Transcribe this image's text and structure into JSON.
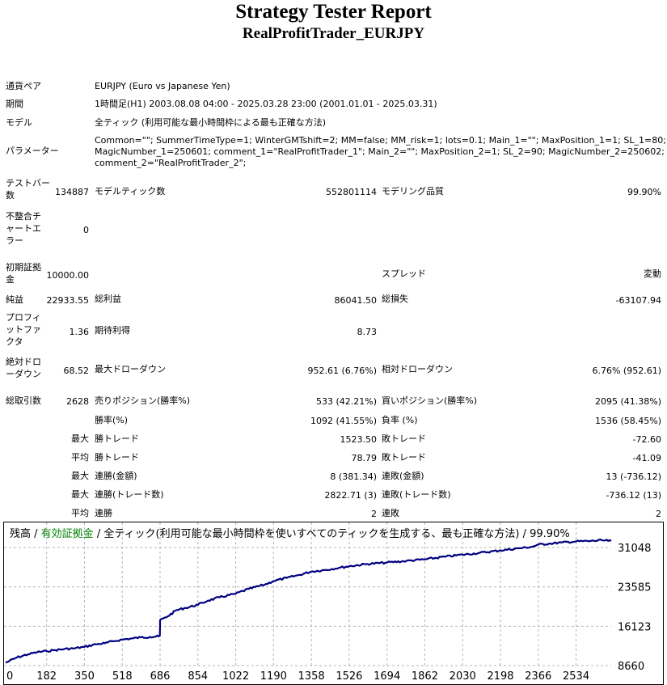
{
  "report": {
    "title": "Strategy Tester Report",
    "subtitle": "RealProfitTrader_EURJPY"
  },
  "info": {
    "pair_label": "通貨ペア",
    "pair_value": "EURJPY (Euro vs Japanese Yen)",
    "period_label": "期間",
    "period_value": "1時間足(H1) 2003.08.08 04:00 - 2025.03.28 23:00 (2001.01.01 - 2025.03.31)",
    "model_label": "モデル",
    "model_value": "全ティック (利用可能な最小時間枠による最も正確な方法)",
    "params_label": "パラメーター",
    "params_line1": "Common=\"\"; SummerTimeType=1; WinterGMTshift=2; MM=false; MM_risk=1; lots=0.1; Main_1=\"\"; MaxPosition_1=1; SL_1=80;",
    "params_line2": "MagicNumber_1=250601; comment_1=\"RealProfitTrader_1\"; Main_2=\"\"; MaxPosition_2=1; SL_2=90; MagicNumber_2=250602;",
    "params_line3": "comment_2=\"RealProfitTrader_2\";"
  },
  "stats": {
    "bars_label": "テストバー数",
    "bars_value": "134887",
    "ticks_label": "モデルティック数",
    "ticks_value": "552801114",
    "quality_label": "モデリング品質",
    "quality_value": "99.90%",
    "mismatch_label": "不整合チャートエラー",
    "mismatch_value": "0",
    "deposit_label": "初期証拠金",
    "deposit_value": "10000.00",
    "spread_label": "スプレッド",
    "spread_value": "変動",
    "net_label": "純益",
    "net_value": "22933.55",
    "gross_profit_label": "総利益",
    "gross_profit_value": "86041.50",
    "gross_loss_label": "総損失",
    "gross_loss_value": "-63107.94",
    "pf_label": "プロフィットファクタ",
    "pf_value": "1.36",
    "expected_label": "期待利得",
    "expected_value": "8.73",
    "abs_dd_label": "絶対ドローダウン",
    "abs_dd_value": "68.52",
    "max_dd_label": "最大ドローダウン",
    "max_dd_value": "952.61 (6.76%)",
    "rel_dd_label": "相対ドローダウン",
    "rel_dd_value": "6.76% (952.61)",
    "trades_label": "総取引数",
    "trades_value": "2628",
    "short_label": "売りポジション(勝率%)",
    "short_value": "533 (42.21%)",
    "long_label": "買いポジション(勝率%)",
    "long_value": "2095 (41.38%)",
    "winrate_label": "勝率(%)",
    "winrate_value": "1092 (41.55%)",
    "lossrate_label": "負率 (%)",
    "lossrate_value": "1536 (58.45%)",
    "max_label": "最大",
    "avg_label": "平均",
    "largest_win_label": "勝トレード",
    "largest_win_value": "1523.50",
    "largest_loss_label": "敗トレード",
    "largest_loss_value": "-72.60",
    "avg_win_label": "勝トレード",
    "avg_win_value": "78.79",
    "avg_loss_label": "敗トレード",
    "avg_loss_value": "-41.09",
    "max_consec_wins_money_label": "連勝(金額)",
    "max_consec_wins_money_value": "8 (381.34)",
    "max_consec_losses_money_label": "連敗(金額)",
    "max_consec_losses_money_value": "13 (-736.12)",
    "max_consec_wins_trades_label": "連勝(トレード数)",
    "max_consec_wins_trades_value": "2822.71 (3)",
    "max_consec_losses_trades_label": "連敗(トレード数)",
    "max_consec_losses_trades_value": "-736.12 (13)",
    "avg_consec_wins_label": "連勝",
    "avg_consec_wins_value": "2",
    "avg_consec_losses_label": "連敗",
    "avg_consec_losses_value": "2"
  },
  "chart_data": {
    "type": "line",
    "legend_prefix": "残高",
    "legend_sep1": " / ",
    "legend_equity": "有効証拠金",
    "legend_rest": " / 全ティック(利用可能な最小時間枠を使いすべてのティックを生成する、最も正確な方法) / 99.90%",
    "x_ticks": [
      "0",
      "182",
      "350",
      "518",
      "686",
      "854",
      "1022",
      "1190",
      "1358",
      "1526",
      "1694",
      "1862",
      "2030",
      "2198",
      "2366",
      "2534"
    ],
    "y_ticks": [
      "31048",
      "23585",
      "16123",
      "8660"
    ],
    "xlim": [
      0,
      2690
    ],
    "ylim": [
      8660,
      33200
    ],
    "grid": true,
    "line_color": "#000080",
    "series": [
      {
        "x": [
          0,
          50,
          100,
          140,
          182,
          220,
          260,
          300,
          350,
          400,
          440,
          480,
          518,
          560,
          600,
          640,
          680,
          685,
          686,
          700,
          720,
          760,
          800,
          854,
          900,
          950,
          1022,
          1080,
          1150,
          1190,
          1250,
          1300,
          1358,
          1420,
          1480,
          1526,
          1600,
          1694,
          1780,
          1862,
          1950,
          2030,
          2100,
          2198,
          2280,
          2340,
          2366,
          2420,
          2470,
          2534,
          2600,
          2650,
          2690
        ],
        "y": [
          9200,
          10200,
          10800,
          11200,
          11400,
          11600,
          11800,
          11900,
          12200,
          12700,
          12900,
          13300,
          13600,
          13800,
          14000,
          14100,
          14200,
          14300,
          17300,
          17600,
          18000,
          19200,
          19600,
          20200,
          21000,
          21600,
          22300,
          23200,
          24000,
          24700,
          25300,
          25800,
          26500,
          26800,
          27200,
          27500,
          27900,
          28200,
          28500,
          28800,
          29300,
          29700,
          30000,
          30500,
          30900,
          31200,
          31600,
          31800,
          32000,
          32200,
          32300,
          32400,
          32300
        ]
      }
    ]
  }
}
